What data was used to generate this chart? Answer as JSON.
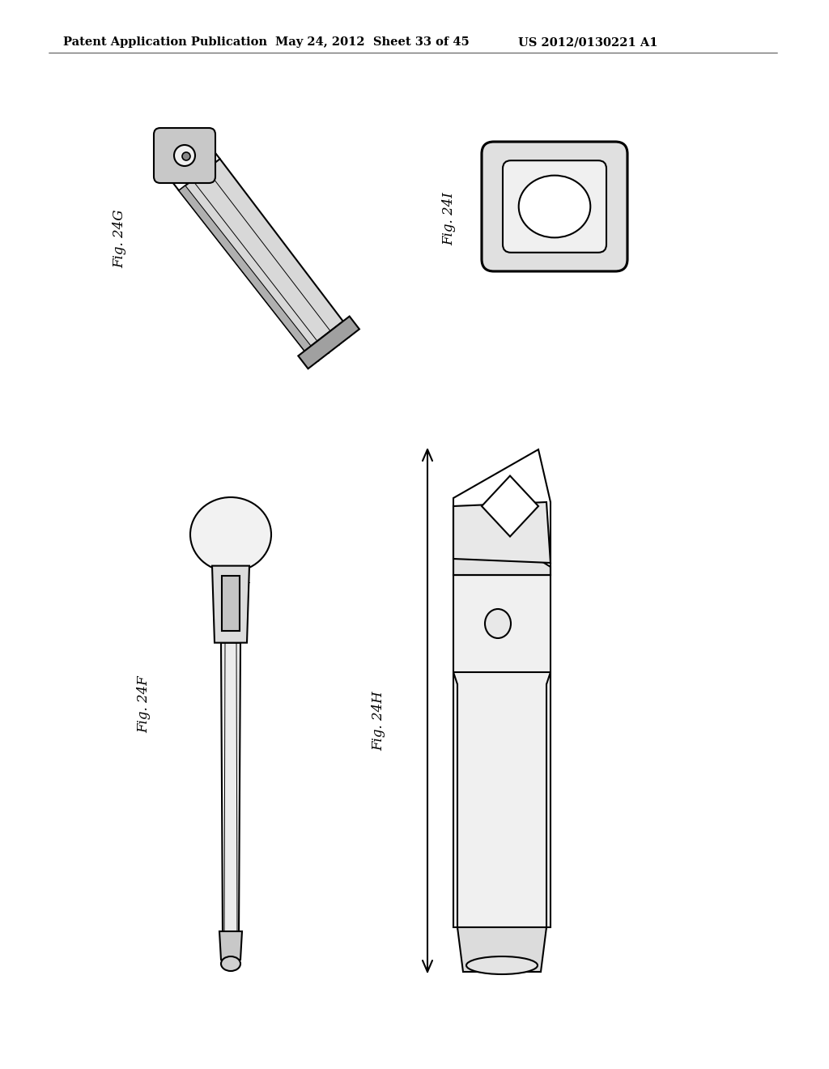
{
  "bg_color": "#ffffff",
  "header_text": "Patent Application Publication",
  "header_date": "May 24, 2012  Sheet 33 of 45",
  "header_patent": "US 2012/0130221 A1",
  "fig_24G_label": "Fig. 24G",
  "fig_24I_label": "Fig. 24I",
  "fig_24F_label": "Fig. 24F",
  "fig_24H_label": "Fig. 24H",
  "line_color": "#000000",
  "line_width": 1.5,
  "header_font_size": 10.5
}
